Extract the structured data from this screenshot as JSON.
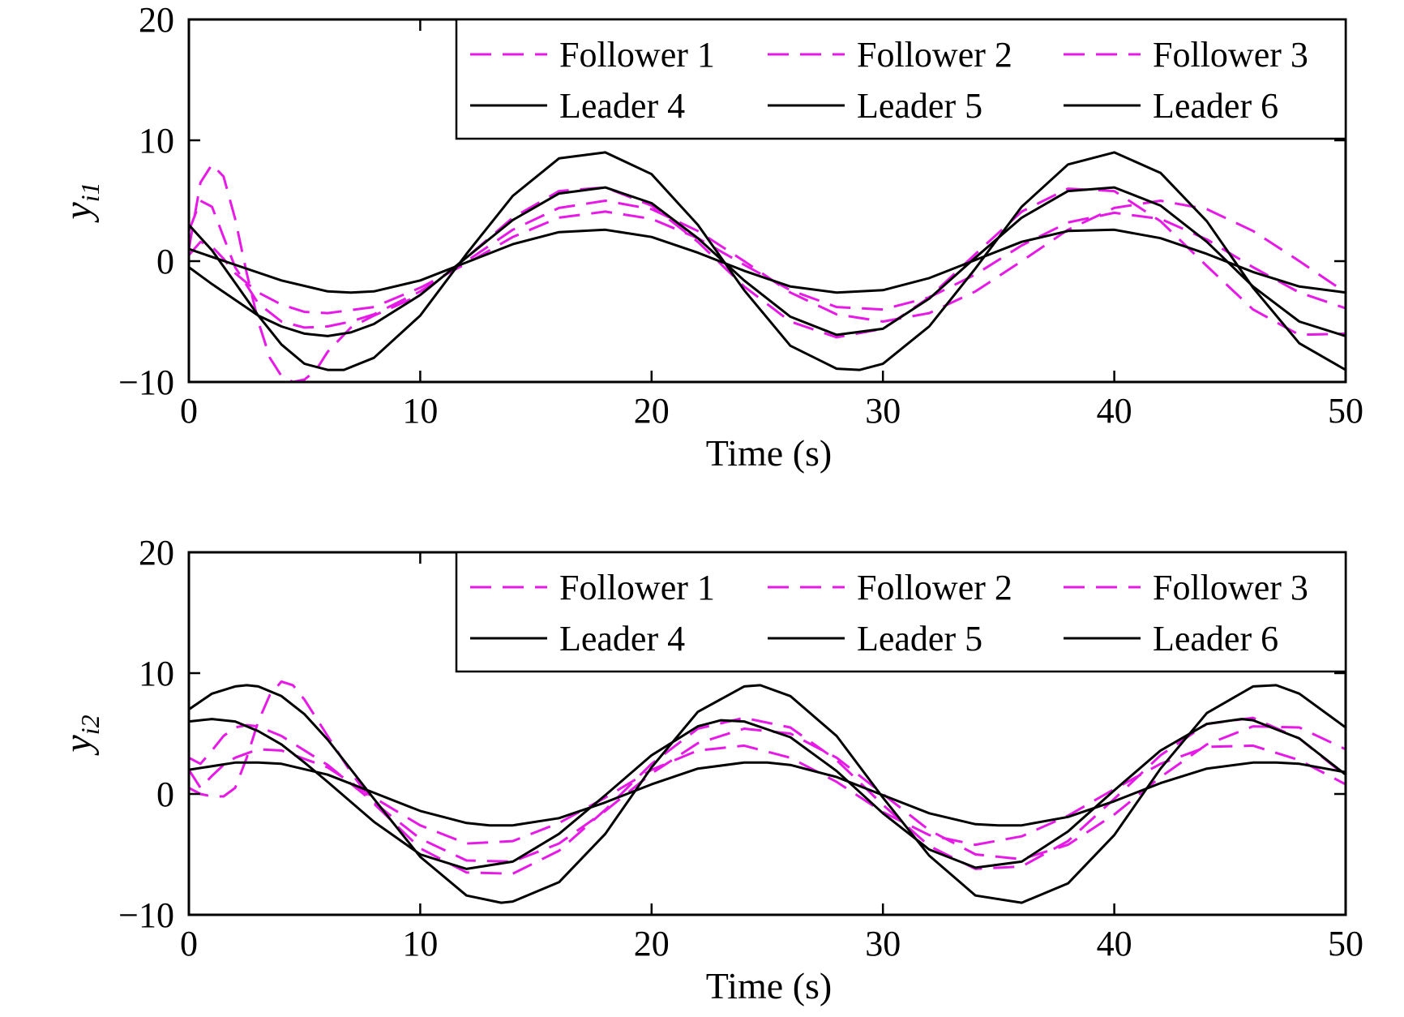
{
  "chart_data": [
    {
      "type": "line",
      "xlabel": "Time (s)",
      "ylabel": {
        "main": "y",
        "sub": "i1"
      },
      "xlim": [
        0,
        50
      ],
      "ylim": [
        -10,
        20
      ],
      "xticks": [
        0,
        10,
        20,
        30,
        40,
        50
      ],
      "yticks": [
        -10,
        0,
        10,
        20
      ],
      "xtick_labels": [
        "0",
        "10",
        "20",
        "30",
        "40",
        "50"
      ],
      "ytick_labels": [
        "−10",
        "0",
        "10",
        "20"
      ],
      "legend": {
        "position": "top-right",
        "columns": 3
      },
      "series": [
        {
          "name": "Follower 1",
          "style": "dashed",
          "color": "#e619e6",
          "x": [
            0,
            0.5,
            1,
            1.5,
            2,
            3,
            4,
            5,
            6,
            7,
            8,
            10,
            12,
            14,
            16,
            18,
            20,
            22,
            24,
            26,
            28,
            30,
            32,
            34,
            36,
            38,
            40,
            42,
            44,
            46,
            48,
            50
          ],
          "y": [
            2.5,
            5.0,
            4.5,
            2.0,
            -0.5,
            -3.5,
            -5.0,
            -5.5,
            -5.4,
            -5.0,
            -4.4,
            -2.5,
            0.0,
            2.6,
            4.4,
            5.0,
            4.3,
            2.5,
            0.0,
            -2.6,
            -4.4,
            -5.0,
            -4.3,
            -2.5,
            0.0,
            2.6,
            4.4,
            5.0,
            4.3,
            2.5,
            0.0,
            -2.6
          ]
        },
        {
          "name": "Follower 2",
          "style": "dashed",
          "color": "#e619e6",
          "x": [
            0,
            0.5,
            1,
            1.5,
            2,
            2.5,
            3,
            3.5,
            4,
            4.5,
            5,
            5.5,
            6,
            7,
            8,
            10,
            12,
            14,
            16,
            18,
            20,
            22,
            24,
            26,
            28,
            30,
            32,
            34,
            36,
            38,
            40,
            42,
            44,
            46,
            48,
            50
          ],
          "y": [
            1.0,
            6.5,
            8.0,
            7.0,
            3.5,
            -1.0,
            -5.0,
            -8.0,
            -9.5,
            -10.0,
            -9.8,
            -9.0,
            -7.5,
            -5.5,
            -4.5,
            -2.8,
            0.3,
            3.6,
            5.8,
            6.1,
            4.6,
            1.6,
            -2.1,
            -5.0,
            -6.3,
            -5.6,
            -3.0,
            0.6,
            4.1,
            6.0,
            5.8,
            3.3,
            -0.4,
            -4.0,
            -6.1,
            -6.0
          ]
        },
        {
          "name": "Follower 3",
          "style": "dashed",
          "color": "#e619e6",
          "x": [
            0,
            0.5,
            1,
            1.5,
            2,
            3,
            4,
            5,
            6,
            8,
            10,
            12,
            14,
            16,
            18,
            20,
            22,
            24,
            26,
            28,
            30,
            32,
            34,
            36,
            38,
            40,
            42,
            44,
            46,
            48,
            50
          ],
          "y": [
            0.5,
            1.6,
            1.2,
            0.2,
            -1.0,
            -2.6,
            -3.6,
            -4.2,
            -4.3,
            -3.8,
            -2.2,
            -0.2,
            2.0,
            3.6,
            4.1,
            3.5,
            1.9,
            -0.3,
            -2.4,
            -3.8,
            -4.0,
            -3.0,
            -1.1,
            1.3,
            3.2,
            4.0,
            3.5,
            1.8,
            -0.5,
            -2.6,
            -3.9
          ]
        },
        {
          "name": "Leader 4",
          "style": "solid",
          "color": "#000000",
          "x": [
            0,
            1,
            2,
            3,
            4,
            5,
            6,
            7,
            8,
            10,
            12,
            14,
            16,
            18,
            20,
            22,
            24,
            26,
            28,
            30,
            32,
            34,
            36,
            38,
            40,
            42,
            44,
            46,
            48,
            50
          ],
          "y": [
            -0.5,
            -1.9,
            -3.2,
            -4.5,
            -5.4,
            -6.0,
            -6.2,
            -5.9,
            -5.2,
            -2.8,
            0.3,
            3.4,
            5.6,
            6.1,
            4.8,
            1.9,
            -1.6,
            -4.6,
            -6.1,
            -5.6,
            -3.1,
            0.3,
            3.6,
            5.8,
            6.1,
            4.6,
            1.6,
            -2.1,
            -5.0,
            -6.2
          ]
        },
        {
          "name": "Leader 5",
          "style": "solid",
          "color": "#000000",
          "x": [
            0,
            1,
            2,
            3,
            4,
            5,
            6,
            6.7,
            8,
            10,
            12,
            14,
            16,
            18,
            20,
            22,
            24,
            26,
            28,
            29,
            30,
            32,
            34,
            36,
            38,
            40,
            42,
            44,
            46,
            48,
            50
          ],
          "y": [
            3.0,
            0.9,
            -1.8,
            -4.5,
            -6.9,
            -8.5,
            -9.0,
            -9.0,
            -8.0,
            -4.5,
            0.6,
            5.4,
            8.5,
            9.0,
            7.2,
            3.0,
            -2.4,
            -7.0,
            -8.9,
            -9.0,
            -8.5,
            -5.4,
            -0.6,
            4.5,
            8.0,
            9.0,
            7.3,
            3.3,
            -2.2,
            -6.8,
            -9.0
          ]
        },
        {
          "name": "Leader 6",
          "style": "solid",
          "color": "#000000",
          "x": [
            0,
            2,
            4,
            6,
            7,
            8,
            10,
            12,
            14,
            16,
            18,
            20,
            22,
            24,
            26,
            28,
            30,
            32,
            34,
            36,
            38,
            40,
            42,
            44,
            46,
            48,
            50
          ],
          "y": [
            1.0,
            -0.3,
            -1.6,
            -2.5,
            -2.6,
            -2.5,
            -1.6,
            -0.1,
            1.4,
            2.4,
            2.6,
            2.0,
            0.7,
            -0.8,
            -2.1,
            -2.6,
            -2.4,
            -1.4,
            0.1,
            1.6,
            2.5,
            2.6,
            1.9,
            0.6,
            -0.9,
            -2.1,
            -2.6
          ]
        }
      ]
    },
    {
      "type": "line",
      "xlabel": "Time (s)",
      "ylabel": {
        "main": "y",
        "sub": "i2"
      },
      "xlim": [
        0,
        50
      ],
      "ylim": [
        -10,
        20
      ],
      "xticks": [
        0,
        10,
        20,
        30,
        40,
        50
      ],
      "yticks": [
        -10,
        0,
        10,
        20
      ],
      "xtick_labels": [
        "0",
        "10",
        "20",
        "30",
        "40",
        "50"
      ],
      "ytick_labels": [
        "−10",
        "0",
        "10",
        "20"
      ],
      "legend": {
        "position": "top-right",
        "columns": 3
      },
      "series": [
        {
          "name": "Follower 1",
          "style": "dashed",
          "color": "#e619e6",
          "x": [
            0,
            0.5,
            1,
            1.5,
            2,
            2.5,
            3,
            4,
            6,
            8,
            10,
            12,
            14,
            16,
            18,
            20,
            22,
            24,
            26,
            28,
            30,
            32,
            34,
            36,
            38,
            40,
            42,
            44,
            46,
            48,
            50
          ],
          "y": [
            3.0,
            2.5,
            3.6,
            4.8,
            5.5,
            5.7,
            5.6,
            4.8,
            2.4,
            -0.7,
            -3.7,
            -5.5,
            -5.6,
            -4.1,
            -1.4,
            1.7,
            4.2,
            5.4,
            5.0,
            3.0,
            0.0,
            -3.0,
            -5.0,
            -5.4,
            -4.2,
            -1.7,
            1.4,
            4.1,
            5.6,
            5.5,
            3.7
          ]
        },
        {
          "name": "Follower 2",
          "style": "dashed",
          "color": "#e619e6",
          "x": [
            0,
            0.5,
            1,
            1.5,
            2,
            2.5,
            3,
            3.5,
            4,
            4.5,
            5,
            6,
            7,
            8,
            10,
            12,
            14,
            16,
            18,
            20,
            22,
            24,
            26,
            28,
            30,
            32,
            34,
            36,
            38,
            40,
            42,
            44,
            46,
            48,
            50
          ],
          "y": [
            0.5,
            0.0,
            -0.2,
            -0.2,
            0.5,
            3.0,
            6.0,
            8.2,
            9.3,
            9.0,
            7.8,
            4.8,
            1.8,
            -0.8,
            -4.5,
            -6.5,
            -6.6,
            -4.7,
            -1.3,
            2.5,
            5.4,
            6.3,
            5.5,
            2.8,
            -0.9,
            -4.3,
            -6.2,
            -6.0,
            -3.9,
            -0.4,
            3.2,
            5.8,
            6.3,
            4.6,
            1.5
          ]
        },
        {
          "name": "Follower 3",
          "style": "dashed",
          "color": "#e619e6",
          "x": [
            0,
            0.5,
            1,
            1.5,
            2,
            3,
            4,
            6,
            8,
            10,
            12,
            14,
            16,
            18,
            20,
            22,
            24,
            26,
            28,
            30,
            32,
            34,
            36,
            38,
            40,
            42,
            44,
            46,
            48,
            50
          ],
          "y": [
            2.0,
            0.5,
            1.5,
            2.4,
            3.0,
            3.7,
            3.6,
            2.2,
            -0.3,
            -2.6,
            -4.1,
            -3.9,
            -2.4,
            -0.3,
            2.0,
            3.6,
            4.0,
            3.0,
            1.0,
            -1.5,
            -3.4,
            -4.2,
            -3.5,
            -1.8,
            0.4,
            2.5,
            3.9,
            4.0,
            2.8,
            0.8
          ]
        },
        {
          "name": "Leader 4",
          "style": "solid",
          "color": "#000000",
          "x": [
            0,
            1,
            2,
            3,
            4,
            5,
            6,
            8,
            10,
            12,
            14,
            16,
            18,
            20,
            22,
            23,
            24,
            26,
            28,
            30,
            32,
            34,
            36,
            38,
            40,
            42,
            44,
            45.5,
            46,
            48,
            50
          ],
          "y": [
            6.0,
            6.2,
            6.0,
            5.2,
            4.1,
            2.6,
            1.0,
            -2.3,
            -5.0,
            -6.2,
            -5.6,
            -3.3,
            -0.1,
            3.2,
            5.6,
            6.1,
            6.0,
            4.7,
            1.9,
            -1.6,
            -4.6,
            -6.1,
            -5.6,
            -3.1,
            0.3,
            3.6,
            5.8,
            6.2,
            6.1,
            4.6,
            1.6
          ]
        },
        {
          "name": "Leader 5",
          "style": "solid",
          "color": "#000000",
          "x": [
            0,
            1,
            2,
            2.5,
            3,
            4,
            5,
            6,
            8,
            10,
            12,
            13.5,
            14,
            16,
            18,
            20,
            22,
            24,
            24.7,
            26,
            28,
            30,
            32,
            34,
            36,
            38,
            40,
            42,
            44,
            46,
            47,
            48,
            50
          ],
          "y": [
            7.0,
            8.3,
            8.9,
            9.0,
            8.9,
            8.1,
            6.6,
            4.5,
            -0.4,
            -5.2,
            -8.4,
            -9.0,
            -8.9,
            -7.3,
            -3.3,
            2.2,
            6.8,
            8.9,
            9.0,
            8.1,
            4.8,
            -0.3,
            -5.1,
            -8.4,
            -9.0,
            -7.4,
            -3.4,
            2.1,
            6.7,
            8.9,
            9.0,
            8.3,
            5.5
          ]
        },
        {
          "name": "Leader 6",
          "style": "solid",
          "color": "#000000",
          "x": [
            0,
            2,
            3,
            4,
            6,
            8,
            10,
            12,
            13,
            14,
            16,
            18,
            20,
            22,
            24,
            25,
            26,
            28,
            30,
            32,
            34,
            35,
            36,
            38,
            40,
            42,
            44,
            46,
            47,
            48,
            50
          ],
          "y": [
            2.0,
            2.6,
            2.6,
            2.5,
            1.6,
            0.1,
            -1.4,
            -2.4,
            -2.6,
            -2.6,
            -2.0,
            -0.7,
            0.8,
            2.1,
            2.6,
            2.6,
            2.4,
            1.4,
            -0.1,
            -1.6,
            -2.5,
            -2.6,
            -2.6,
            -1.9,
            -0.6,
            0.9,
            2.1,
            2.6,
            2.6,
            2.5,
            1.8
          ]
        }
      ]
    }
  ]
}
